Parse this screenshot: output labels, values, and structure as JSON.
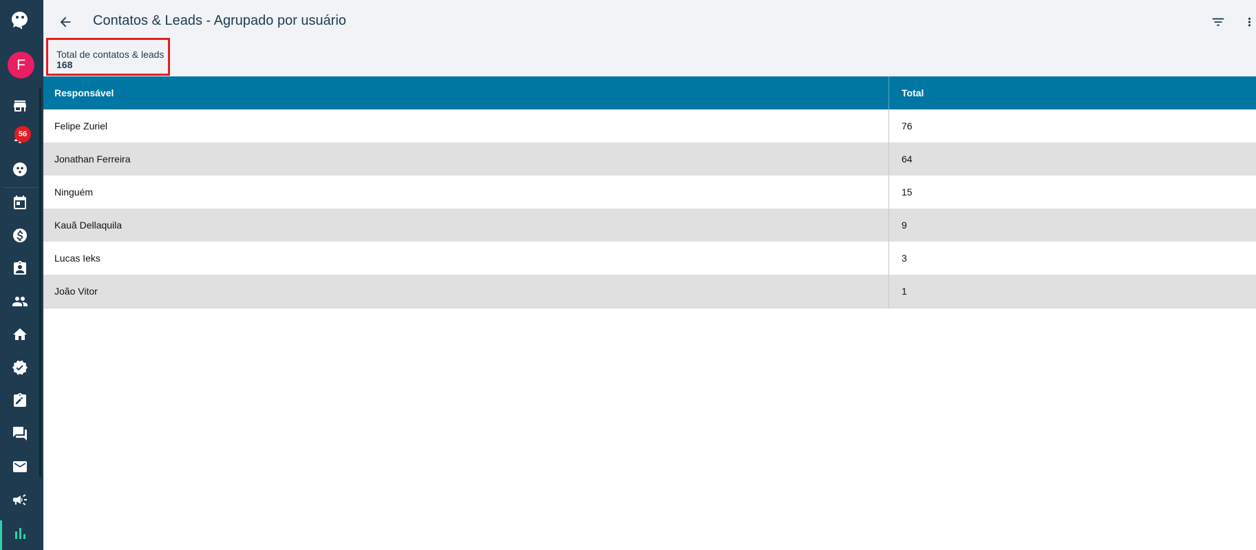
{
  "header": {
    "title": "Contatos & Leads - Agrupado por usuário"
  },
  "summary": {
    "label": "Total de contatos & leads",
    "value": "168"
  },
  "user": {
    "avatar_letter": "F"
  },
  "notifications": {
    "count": "56"
  },
  "sidebar": {
    "icons": [
      "logo-icon",
      "store-icon",
      "bell-icon",
      "groups-icon",
      "calendar-icon",
      "dollar-icon",
      "badge-icon",
      "people-icon",
      "home-icon",
      "verified-icon",
      "assignment-icon",
      "chat-icon",
      "mail-icon",
      "campaign-icon",
      "bar-chart-icon"
    ],
    "active": "bar-chart-icon"
  },
  "table": {
    "columns": [
      "Responsável",
      "Total"
    ],
    "rows": [
      {
        "name": "Felipe Zuriel",
        "total": "76"
      },
      {
        "name": "Jonathan Ferreira",
        "total": "64"
      },
      {
        "name": "Ninguém",
        "total": "15"
      },
      {
        "name": "Kauã Dellaquila",
        "total": "9"
      },
      {
        "name": "Lucas Ieks",
        "total": "3"
      },
      {
        "name": "João Vitor",
        "total": "1"
      }
    ]
  },
  "colors": {
    "sidebar": "#1f3b50",
    "table_header": "#0076a3",
    "highlight": "#e51c23",
    "accent": "#2ed3a8"
  }
}
